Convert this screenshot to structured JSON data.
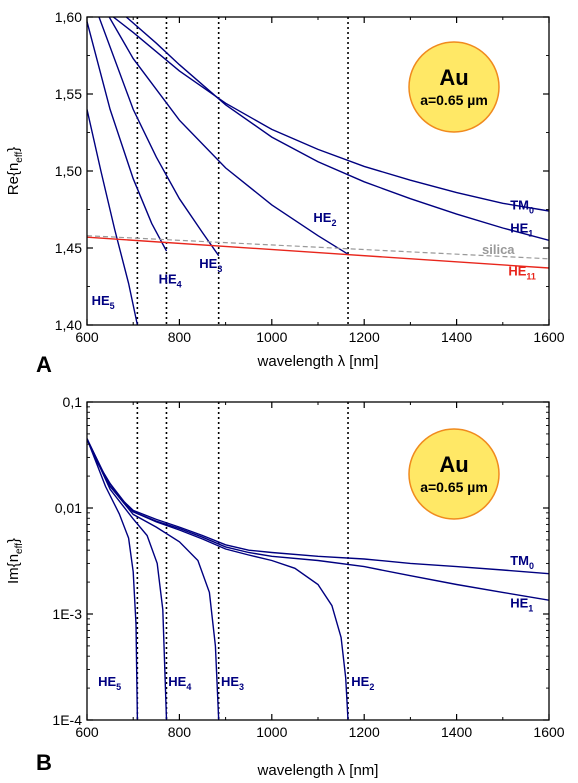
{
  "chart_data": [
    {
      "panel": "A",
      "type": "line",
      "xlabel_prefix": "wavelength ",
      "xlabel_symbol": "λ",
      "xlabel_unit": " [nm]",
      "ylabel_main": "Re{n",
      "ylabel_sub": "eff",
      "ylabel_end": "}",
      "xlim": [
        600,
        1600
      ],
      "ylim": [
        1.4,
        1.6
      ],
      "xticks": [
        "600",
        "800",
        "1000",
        "1200",
        "1400",
        "1600"
      ],
      "yticks": [
        "1,40",
        "1,45",
        "1,50",
        "1,55",
        "1,60"
      ],
      "badge": {
        "material": "Au",
        "radius": "a=0.65 µm",
        "fill": "#ffe866",
        "stroke": "#f08a1e"
      },
      "cutoffs": [
        709,
        772,
        885,
        1165
      ],
      "series": [
        {
          "name": "TM",
          "sub": "0",
          "color": "#000080",
          "x": [
            657,
            700,
            800,
            900,
            1000,
            1100,
            1200,
            1300,
            1400,
            1500,
            1600
          ],
          "y": [
            1.6,
            1.59,
            1.565,
            1.544,
            1.527,
            1.514,
            1.503,
            1.494,
            1.486,
            1.479,
            1.474
          ]
        },
        {
          "name": "HE",
          "sub": "1",
          "color": "#000080",
          "x": [
            685,
            750,
            800,
            900,
            1000,
            1100,
            1200,
            1300,
            1400,
            1500,
            1600
          ],
          "y": [
            1.6,
            1.583,
            1.569,
            1.543,
            1.522,
            1.506,
            1.493,
            1.482,
            1.472,
            1.463,
            1.455
          ]
        },
        {
          "name": "HE",
          "sub": "2",
          "color": "#000080",
          "x": [
            648,
            700,
            800,
            900,
            1000,
            1100,
            1165
          ],
          "y": [
            1.6,
            1.573,
            1.533,
            1.502,
            1.478,
            1.458,
            1.446
          ]
        },
        {
          "name": "HE",
          "sub": "3",
          "color": "#000080",
          "x": [
            626,
            700,
            750,
            800,
            850,
            885
          ],
          "y": [
            1.6,
            1.54,
            1.509,
            1.482,
            1.46,
            1.445
          ]
        },
        {
          "name": "HE",
          "sub": "4",
          "color": "#000080",
          "x": [
            600,
            650,
            700,
            740,
            772
          ],
          "y": [
            1.597,
            1.54,
            1.495,
            1.466,
            1.448
          ]
        },
        {
          "name": "HE",
          "sub": "5",
          "color": "#000080",
          "x": [
            600,
            630,
            660,
            690,
            709
          ],
          "y": [
            1.54,
            1.5,
            1.462,
            1.427,
            1.4
          ]
        },
        {
          "name": "HE",
          "sub": "11",
          "color": "#e8261c",
          "x": [
            600,
            1600
          ],
          "y": [
            1.457,
            1.437
          ]
        },
        {
          "name": "silica",
          "color": "#999999",
          "dashed": true,
          "x": [
            600,
            1600
          ],
          "y": [
            1.458,
            1.443
          ]
        }
      ]
    },
    {
      "panel": "B",
      "type": "line",
      "yscale": "log",
      "xlabel_prefix": "wavelength ",
      "xlabel_symbol": "λ",
      "xlabel_unit": " [nm]",
      "ylabel_main": "Im{n",
      "ylabel_sub": "eff",
      "ylabel_end": "}",
      "xlim": [
        600,
        1600
      ],
      "ylim": [
        0.0001,
        0.1
      ],
      "xticks": [
        "600",
        "800",
        "1000",
        "1200",
        "1400",
        "1600"
      ],
      "yticks": [
        "1E-4",
        "1E-3",
        "0,01",
        "0,1"
      ],
      "badge": {
        "material": "Au",
        "radius": "a=0.65 µm",
        "fill": "#ffe866",
        "stroke": "#f08a1e"
      },
      "cutoffs": [
        709,
        772,
        885,
        1165
      ],
      "series": [
        {
          "name": "TM",
          "sub": "0",
          "color": "#000080",
          "x": [
            600,
            620,
            650,
            680,
            700,
            750,
            800,
            850,
            900,
            950,
            1000,
            1100,
            1200,
            1300,
            1400,
            1500,
            1600
          ],
          "y": [
            0.045,
            0.028,
            0.017,
            0.0115,
            0.0095,
            0.0078,
            0.0066,
            0.0055,
            0.0045,
            0.004,
            0.0038,
            0.0035,
            0.0033,
            0.003,
            0.0028,
            0.0026,
            0.0024
          ]
        },
        {
          "name": "HE",
          "sub": "1",
          "color": "#000080",
          "x": [
            600,
            620,
            650,
            680,
            700,
            750,
            800,
            850,
            900,
            950,
            1000,
            1100,
            1200,
            1300,
            1400,
            1500,
            1600
          ],
          "y": [
            0.045,
            0.028,
            0.017,
            0.0112,
            0.0092,
            0.0075,
            0.0064,
            0.0053,
            0.0043,
            0.0038,
            0.0035,
            0.0032,
            0.0028,
            0.0023,
            0.0019,
            0.0016,
            0.00135
          ]
        },
        {
          "name": "HE",
          "sub": "2",
          "color": "#000080",
          "x": [
            600,
            650,
            700,
            750,
            800,
            850,
            900,
            950,
            1000,
            1050,
            1100,
            1130,
            1150,
            1160,
            1165
          ],
          "y": [
            0.045,
            0.016,
            0.0092,
            0.0074,
            0.0062,
            0.0051,
            0.0041,
            0.0036,
            0.0032,
            0.0027,
            0.0019,
            0.0012,
            0.0006,
            0.00025,
            0.0001
          ]
        },
        {
          "name": "HE",
          "sub": "3",
          "color": "#000080",
          "x": [
            600,
            650,
            700,
            750,
            800,
            840,
            865,
            878,
            885
          ],
          "y": [
            0.045,
            0.016,
            0.0087,
            0.0066,
            0.0048,
            0.0032,
            0.0016,
            0.0005,
            0.0001
          ]
        },
        {
          "name": "HE",
          "sub": "4",
          "color": "#000080",
          "x": [
            600,
            650,
            700,
            730,
            752,
            764,
            772
          ],
          "y": [
            0.045,
            0.015,
            0.0079,
            0.0055,
            0.003,
            0.0011,
            0.0001
          ]
        },
        {
          "name": "HE",
          "sub": "5",
          "color": "#000080",
          "x": [
            600,
            640,
            670,
            690,
            700,
            706,
            709
          ],
          "y": [
            0.045,
            0.016,
            0.0088,
            0.0052,
            0.0025,
            0.0008,
            0.0001
          ]
        }
      ]
    }
  ]
}
